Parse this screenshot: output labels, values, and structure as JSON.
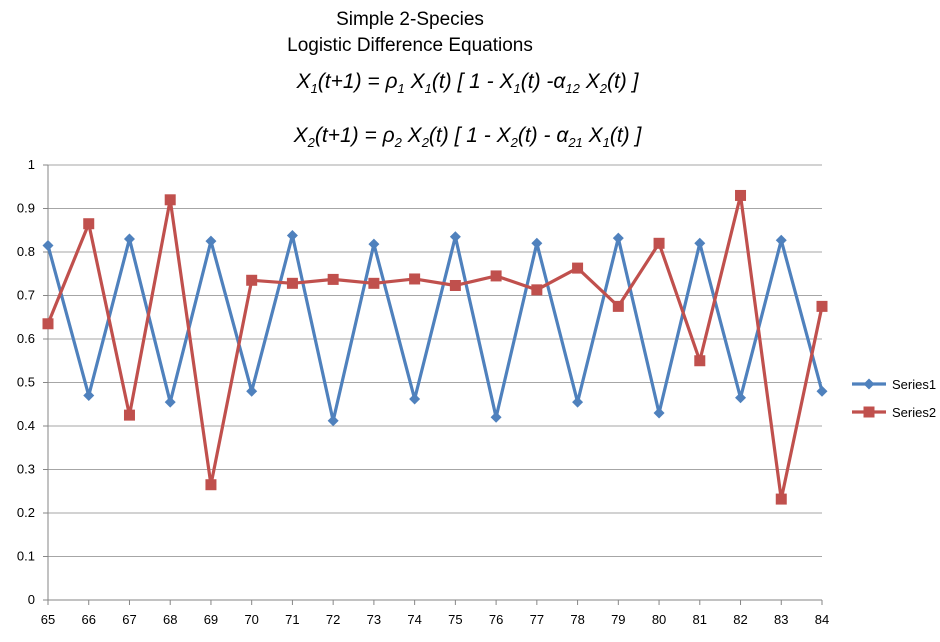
{
  "chart_data": {
    "type": "line",
    "title_line1": "Simple 2-Species",
    "title_line2": "Logistic Difference Equations",
    "equation1": {
      "parts": [
        "X",
        "1",
        "(t+1) = ",
        "ρ",
        "1",
        " X",
        "1",
        "(t) [ 1 - X",
        "1",
        "(t) -",
        "α",
        "12",
        " X",
        "2",
        "(t) ]"
      ]
    },
    "equation2": {
      "parts": [
        "X",
        "2",
        "(t+1) = ",
        "ρ",
        "2",
        " X",
        "2",
        "(t) [ 1 - X",
        "2",
        "(t) - ",
        "α",
        "21",
        " X",
        "1",
        "(t) ]"
      ]
    },
    "x": [
      65,
      66,
      67,
      68,
      69,
      70,
      71,
      72,
      73,
      74,
      75,
      76,
      77,
      78,
      79,
      80,
      81,
      82,
      83,
      84
    ],
    "ylim": [
      0,
      1
    ],
    "yticks": [
      "0",
      "0.1",
      "0.2",
      "0.3",
      "0.4",
      "0.5",
      "0.6",
      "0.7",
      "0.8",
      "0.9",
      "1"
    ],
    "grid": true,
    "legend_position": "right",
    "series": [
      {
        "name": "Series1",
        "color": "#4F81BD",
        "marker": "diamond",
        "values": [
          0.815,
          0.47,
          0.83,
          0.455,
          0.825,
          0.48,
          0.838,
          0.412,
          0.818,
          0.462,
          0.835,
          0.42,
          0.82,
          0.455,
          0.832,
          0.43,
          0.82,
          0.465,
          0.827,
          0.48
        ]
      },
      {
        "name": "Series2",
        "color": "#C0504D",
        "marker": "square",
        "values": [
          0.635,
          0.865,
          0.425,
          0.92,
          0.265,
          0.735,
          0.728,
          0.737,
          0.728,
          0.738,
          0.723,
          0.745,
          0.713,
          0.763,
          0.675,
          0.82,
          0.55,
          0.93,
          0.232,
          0.675
        ]
      }
    ]
  }
}
